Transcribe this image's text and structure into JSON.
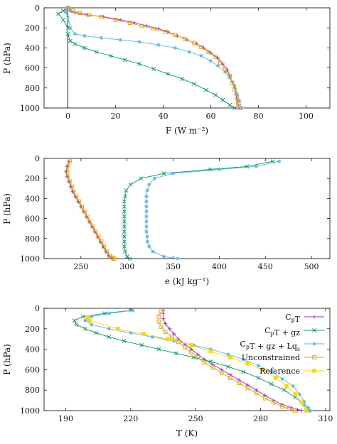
{
  "chart_data": [
    {
      "type": "line",
      "xlabel": "F  (W m⁻²)",
      "ylabel": "P (hPa)",
      "xlim": [
        -10,
        110
      ],
      "ylim": [
        0,
        1000
      ],
      "y_inverted": true,
      "xticks": [
        0,
        20,
        40,
        60,
        80,
        100
      ],
      "yticks": [
        0,
        200,
        400,
        600,
        800,
        1000
      ],
      "vline_x": 0,
      "series": [
        {
          "key": "cpt",
          "color": "#9b2bd6",
          "marker": "plus",
          "x": [
            0,
            1,
            3,
            8,
            15,
            22,
            28,
            33,
            38,
            42,
            46,
            50,
            54,
            57,
            60,
            63,
            65,
            67,
            68,
            69,
            70,
            70.5,
            71,
            71.5,
            72
          ],
          "y": [
            0,
            30,
            50,
            70,
            90,
            120,
            150,
            180,
            210,
            240,
            280,
            320,
            360,
            400,
            450,
            500,
            560,
            620,
            680,
            740,
            800,
            860,
            920,
            970,
            1000
          ]
        },
        {
          "key": "cpt_gz",
          "color": "#0a9a5a",
          "marker": "cross",
          "x": [
            0,
            -2,
            -4,
            -2,
            0,
            0,
            1,
            3,
            7,
            12,
            18,
            24,
            30,
            36,
            42,
            48,
            53,
            58,
            62,
            65,
            68,
            70
          ],
          "y": [
            0,
            30,
            60,
            120,
            200,
            260,
            330,
            360,
            400,
            440,
            480,
            520,
            560,
            610,
            660,
            710,
            760,
            820,
            870,
            920,
            970,
            1000
          ]
        },
        {
          "key": "cpt_gz_lq",
          "color": "#56b4e9",
          "marker": "star",
          "x": [
            0,
            -1,
            0,
            1,
            3,
            7,
            14,
            22,
            30,
            38,
            45,
            51,
            56,
            60,
            63,
            66,
            68,
            70,
            71,
            72,
            73
          ],
          "y": [
            0,
            40,
            90,
            200,
            260,
            280,
            300,
            320,
            340,
            370,
            400,
            440,
            480,
            530,
            580,
            640,
            700,
            780,
            860,
            930,
            1000
          ]
        },
        {
          "key": "unconstrained",
          "color": "#e69f00",
          "marker": "square",
          "x": [
            0,
            2,
            5,
            9,
            14,
            20,
            26,
            31,
            36,
            41,
            45,
            49,
            53,
            56,
            59,
            62,
            64,
            66,
            68,
            69,
            70,
            71,
            71.5,
            72
          ],
          "y": [
            0,
            30,
            50,
            70,
            90,
            120,
            150,
            180,
            210,
            240,
            270,
            310,
            350,
            390,
            440,
            490,
            550,
            610,
            680,
            750,
            820,
            890,
            950,
            1000
          ]
        }
      ]
    },
    {
      "type": "line",
      "xlabel": "e  (kJ kg⁻¹)",
      "ylabel": "P (hPa)",
      "xlim": [
        210,
        520
      ],
      "ylim": [
        0,
        1000
      ],
      "y_inverted": true,
      "xticks": [
        250,
        300,
        350,
        400,
        450,
        500
      ],
      "yticks": [
        0,
        200,
        400,
        600,
        800,
        1000
      ],
      "series": [
        {
          "key": "cpt",
          "color": "#9b2bd6",
          "marker": "plus",
          "x": [
            237,
            235,
            234,
            235,
            237,
            239,
            241,
            244,
            247,
            250,
            253,
            256,
            259,
            262,
            265,
            268,
            271,
            274,
            277,
            280,
            283,
            285
          ],
          "y": [
            30,
            80,
            130,
            180,
            230,
            280,
            330,
            380,
            430,
            480,
            530,
            580,
            630,
            680,
            730,
            780,
            830,
            880,
            930,
            970,
            990,
            1000
          ]
        },
        {
          "key": "cpt_gz",
          "color": "#0a9a5a",
          "marker": "cross",
          "x": [
            458,
            430,
            390,
            340,
            315,
            304,
            299,
            298,
            297,
            297,
            297,
            297,
            297,
            297,
            297,
            297,
            297,
            297,
            298,
            300,
            303
          ],
          "y": [
            30,
            80,
            110,
            150,
            200,
            260,
            320,
            380,
            430,
            480,
            530,
            580,
            630,
            680,
            730,
            780,
            830,
            880,
            930,
            980,
            1000
          ]
        },
        {
          "key": "cpt_gz_lq",
          "color": "#56b4e9",
          "marker": "star",
          "x": [
            465,
            440,
            400,
            350,
            330,
            324,
            322,
            321,
            321,
            321,
            321,
            321,
            321,
            321,
            321,
            322,
            322,
            324,
            328,
            340,
            355
          ],
          "y": [
            30,
            80,
            110,
            150,
            200,
            260,
            320,
            380,
            430,
            480,
            530,
            580,
            630,
            680,
            730,
            780,
            830,
            880,
            930,
            980,
            1000
          ]
        },
        {
          "key": "unconstrained",
          "color": "#e69f00",
          "marker": "square",
          "x": [
            238,
            236,
            235,
            236,
            238,
            240,
            242,
            245,
            248,
            251,
            254,
            257,
            260,
            263,
            266,
            269,
            272,
            275,
            278,
            281,
            284,
            286
          ],
          "y": [
            30,
            80,
            130,
            180,
            230,
            280,
            330,
            380,
            430,
            480,
            530,
            580,
            630,
            680,
            730,
            780,
            830,
            880,
            930,
            970,
            990,
            1000
          ]
        }
      ]
    },
    {
      "type": "line",
      "xlabel": "T  (K)",
      "ylabel": "P (hPa)",
      "xlim": [
        180,
        312
      ],
      "ylim": [
        0,
        1000
      ],
      "y_inverted": true,
      "xticks": [
        190,
        220,
        250,
        280,
        310
      ],
      "yticks": [
        0,
        200,
        400,
        600,
        800,
        1000
      ],
      "legend_position": "top-right",
      "series": [
        {
          "key": "cpt",
          "name": "C_pT",
          "color": "#9b2bd6",
          "marker": "plus",
          "x": [
            235,
            235,
            235,
            236,
            238,
            240,
            242,
            245,
            248,
            251,
            254,
            258,
            262,
            266,
            270,
            274,
            278,
            282,
            286,
            290,
            294,
            297,
            299
          ],
          "y": [
            20,
            50,
            100,
            150,
            200,
            250,
            300,
            350,
            400,
            450,
            500,
            550,
            600,
            650,
            700,
            750,
            800,
            850,
            900,
            940,
            970,
            990,
            1000
          ]
        },
        {
          "key": "cpt_gz",
          "name": "C_pT + gz",
          "color": "#0a9a5a",
          "marker": "cross",
          "x": [
            220,
            208,
            198,
            194,
            195,
            199,
            204,
            210,
            217,
            225,
            233,
            241,
            249,
            257,
            265,
            272,
            279,
            285,
            291,
            296,
            300,
            302
          ],
          "y": [
            20,
            50,
            80,
            120,
            160,
            200,
            240,
            280,
            320,
            360,
            400,
            440,
            480,
            520,
            570,
            620,
            680,
            740,
            800,
            870,
            940,
            1000
          ]
        },
        {
          "key": "cpt_gz_lq",
          "name": "C_pT + gz + Lq_s",
          "color": "#56b4e9",
          "marker": "star",
          "x": [
            221,
            210,
            202,
            199,
            202,
            210,
            220,
            230,
            240,
            249,
            257,
            265,
            272,
            279,
            285,
            290,
            295,
            298,
            300,
            302,
            303
          ],
          "y": [
            20,
            50,
            80,
            120,
            160,
            200,
            240,
            280,
            320,
            360,
            400,
            450,
            500,
            560,
            620,
            690,
            760,
            840,
            910,
            970,
            1000
          ]
        },
        {
          "key": "unconstrained",
          "name": "Unconstrained",
          "color": "#e69f00",
          "marker": "square",
          "x": [
            234,
            233,
            233,
            234,
            236,
            239,
            242,
            245,
            248,
            251,
            254,
            258,
            262,
            266,
            270,
            274,
            278,
            282,
            286,
            290,
            293,
            296
          ],
          "y": [
            30,
            80,
            130,
            180,
            230,
            280,
            330,
            380,
            430,
            480,
            530,
            580,
            630,
            680,
            730,
            780,
            830,
            880,
            920,
            960,
            985,
            1000
          ]
        },
        {
          "key": "reference",
          "name": "Reference",
          "color": "#ffd600",
          "marker": "filled-square",
          "x": [
            200,
            201,
            214,
            226,
            237,
            248,
            257,
            266,
            274,
            281,
            287,
            292,
            296,
            299,
            301
          ],
          "y": [
            90,
            120,
            200,
            250,
            300,
            360,
            420,
            480,
            540,
            600,
            680,
            760,
            840,
            920,
            1000
          ]
        }
      ]
    }
  ]
}
